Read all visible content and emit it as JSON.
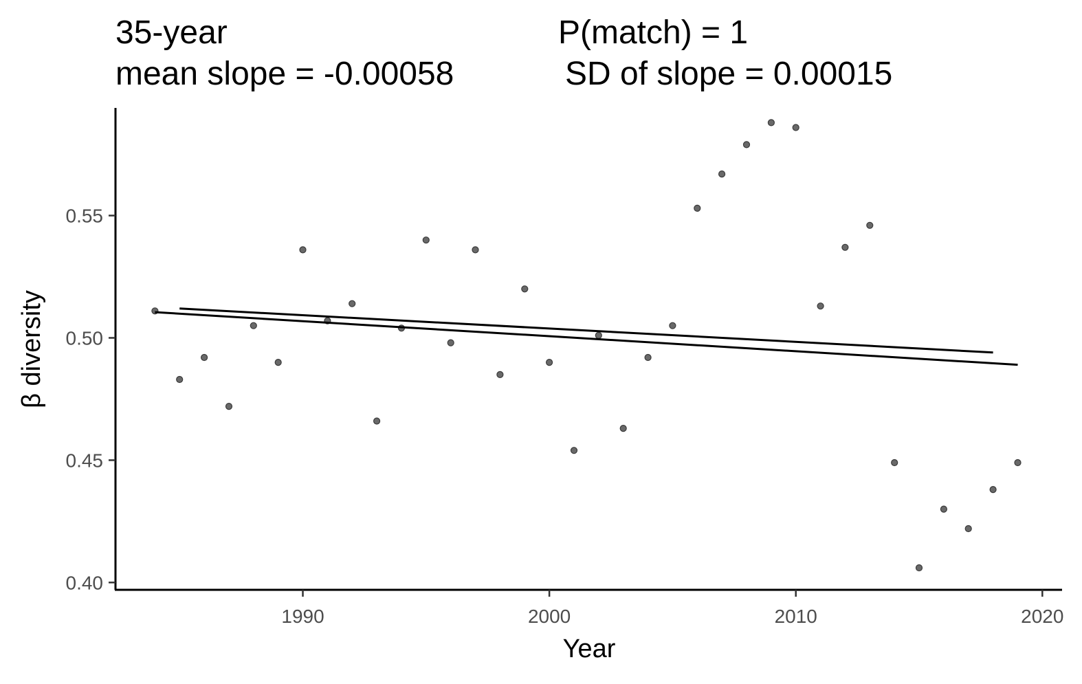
{
  "chart_data": {
    "type": "scatter",
    "title_left_line1": "35-year",
    "title_left_line2": "mean slope = -0.00058",
    "title_right_line1": "P(match) = 1",
    "title_right_line2": "SD of slope = 0.00015",
    "xlabel": "Year",
    "ylabel": "β diversity",
    "xlim": [
      1982.4,
      2020.8
    ],
    "ylim": [
      0.397,
      0.594
    ],
    "xticks": [
      1990,
      2000,
      2010,
      2020
    ],
    "yticks": [
      0.4,
      0.45,
      0.5,
      0.55
    ],
    "xtick_labels": [
      "1990",
      "2000",
      "2010",
      "2020"
    ],
    "ytick_labels": [
      "0.40",
      "0.45",
      "0.50",
      "0.55"
    ],
    "grid": false,
    "point_color": "#595959",
    "line_color": "#000000",
    "points": [
      {
        "x": 1984,
        "y": 0.511
      },
      {
        "x": 1985,
        "y": 0.483
      },
      {
        "x": 1986,
        "y": 0.492
      },
      {
        "x": 1987,
        "y": 0.472
      },
      {
        "x": 1988,
        "y": 0.505
      },
      {
        "x": 1989,
        "y": 0.49
      },
      {
        "x": 1990,
        "y": 0.536
      },
      {
        "x": 1991,
        "y": 0.507
      },
      {
        "x": 1992,
        "y": 0.514
      },
      {
        "x": 1993,
        "y": 0.466
      },
      {
        "x": 1994,
        "y": 0.504
      },
      {
        "x": 1995,
        "y": 0.54
      },
      {
        "x": 1996,
        "y": 0.498
      },
      {
        "x": 1997,
        "y": 0.536
      },
      {
        "x": 1998,
        "y": 0.485
      },
      {
        "x": 1999,
        "y": 0.52
      },
      {
        "x": 2000,
        "y": 0.49
      },
      {
        "x": 2001,
        "y": 0.454
      },
      {
        "x": 2002,
        "y": 0.501
      },
      {
        "x": 2003,
        "y": 0.463
      },
      {
        "x": 2004,
        "y": 0.492
      },
      {
        "x": 2005,
        "y": 0.505
      },
      {
        "x": 2006,
        "y": 0.553
      },
      {
        "x": 2007,
        "y": 0.567
      },
      {
        "x": 2008,
        "y": 0.579
      },
      {
        "x": 2009,
        "y": 0.588
      },
      {
        "x": 2010,
        "y": 0.586
      },
      {
        "x": 2011,
        "y": 0.513
      },
      {
        "x": 2012,
        "y": 0.537
      },
      {
        "x": 2013,
        "y": 0.546
      },
      {
        "x": 2014,
        "y": 0.449
      },
      {
        "x": 2015,
        "y": 0.406
      },
      {
        "x": 2016,
        "y": 0.43
      },
      {
        "x": 2017,
        "y": 0.422
      },
      {
        "x": 2018,
        "y": 0.438
      },
      {
        "x": 2019,
        "y": 0.449
      }
    ],
    "lines": [
      {
        "x1": 1984,
        "y1": 0.5105,
        "x2": 2019,
        "y2": 0.489
      },
      {
        "x1": 1985,
        "y1": 0.512,
        "x2": 2018,
        "y2": 0.494
      }
    ]
  }
}
